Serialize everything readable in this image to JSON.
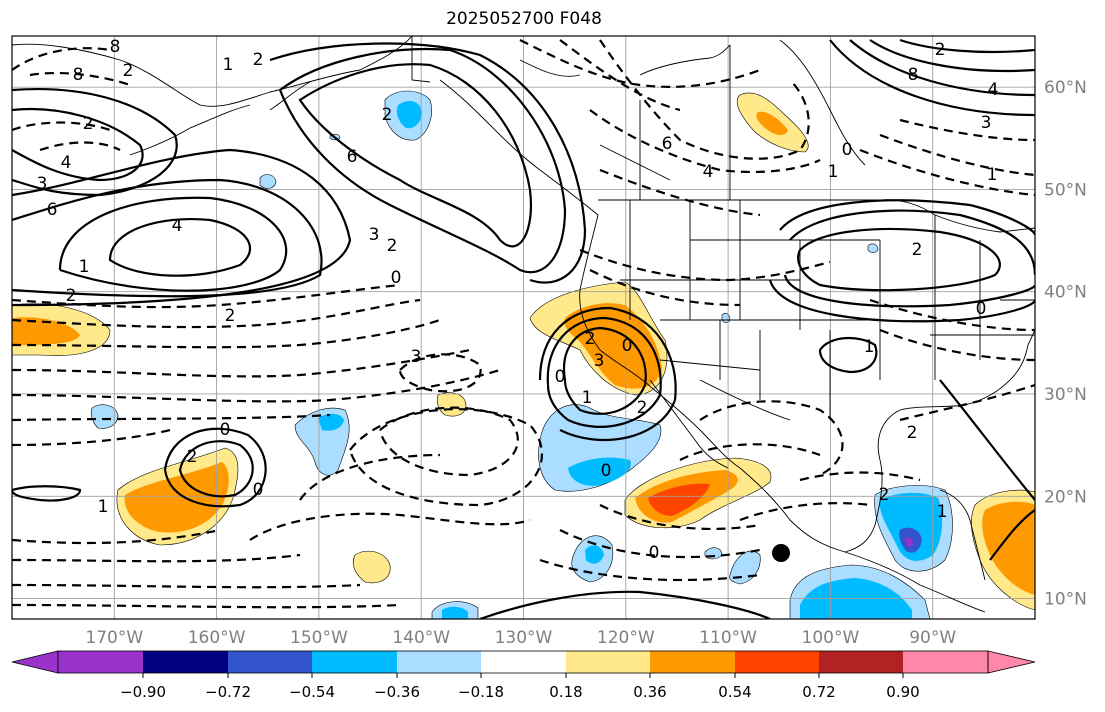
{
  "title": "2025052700 F048",
  "map": {
    "lon_range": [
      -180,
      -80
    ],
    "lat_range": [
      8,
      65
    ],
    "longitude_labels": [
      "170°W",
      "160°W",
      "150°W",
      "140°W",
      "130°W",
      "120°W",
      "110°W",
      "100°W",
      "90°W"
    ],
    "latitude_labels": [
      "60°N",
      "50°N",
      "40°N",
      "30°N",
      "20°N",
      "10°N"
    ],
    "grid": true,
    "marker": {
      "type": "black-dot",
      "lon": -104.5,
      "lat": 14.5
    }
  },
  "contour_labels": [
    "8",
    "2",
    "1",
    "2",
    "8",
    "2",
    "6",
    "2",
    "4",
    "3",
    "6",
    "4",
    "1",
    "2",
    "2",
    "0",
    "3",
    "2",
    "3",
    "6",
    "4",
    "1",
    "0",
    "2",
    "0",
    "1",
    "2",
    "2",
    "1",
    "0",
    "0",
    "2",
    "1",
    "0",
    "2",
    "3",
    "0",
    "2",
    "8",
    "4",
    "3",
    "1",
    "0",
    "2",
    "0",
    "1"
  ],
  "colorbar": {
    "levels": [
      "−0.90",
      "−0.72",
      "−0.54",
      "−0.36",
      "−0.18",
      "0.18",
      "0.36",
      "0.54",
      "0.72",
      "0.90"
    ],
    "colors": [
      "#9933cc",
      "#000080",
      "#3355cc",
      "#00bbff",
      "#aaddff",
      "#ffffff",
      "#ffe98a",
      "#ff9900",
      "#ff4400",
      "#b22222",
      "#ff88aa"
    ],
    "extend": "both"
  },
  "fill_colors": {
    "light_yellow": "#ffe98a",
    "orange": "#ff9900",
    "red_orange": "#ff4400",
    "light_blue": "#aaddff",
    "cyan": "#00bbff",
    "blue": "#3355cc",
    "purple": "#9933cc"
  }
}
